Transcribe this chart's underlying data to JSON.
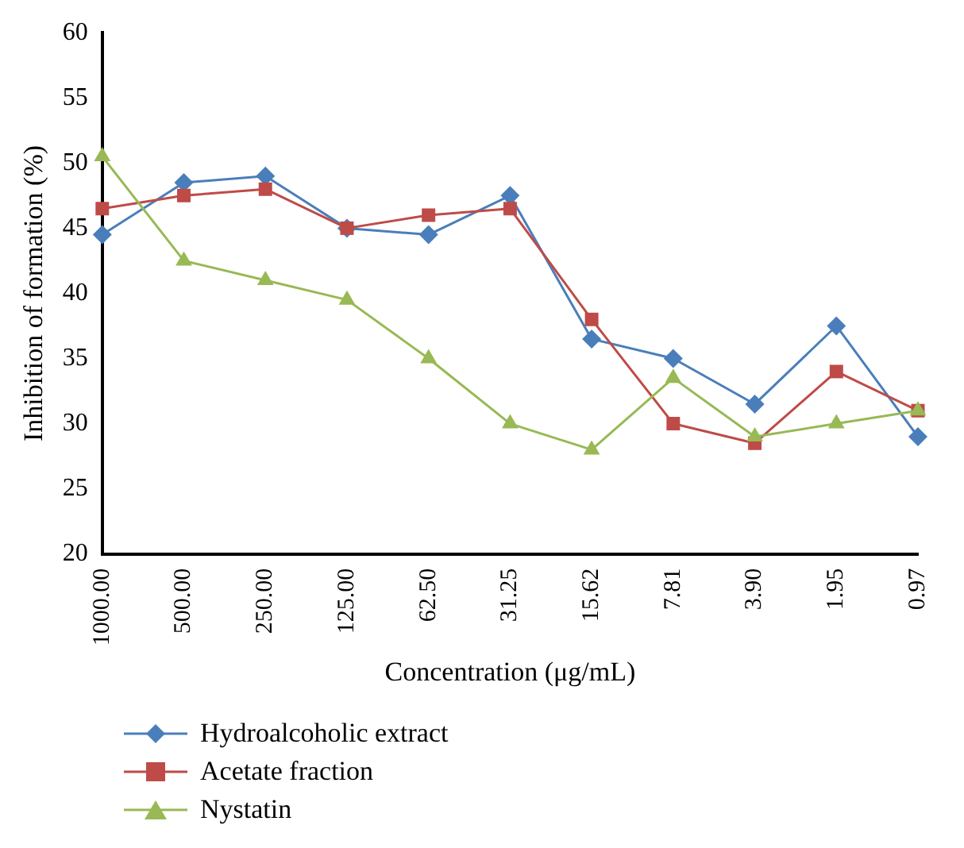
{
  "chart_data": {
    "type": "line",
    "xlabel": "Concentration (μg/mL)",
    "ylabel": "Inhibition of formation (%)",
    "categories": [
      "1000.00",
      "500.00",
      "250.00",
      "125.00",
      "62.50",
      "31.25",
      "15.62",
      "7.81",
      "3.90",
      "1.95",
      "0.97"
    ],
    "series": [
      {
        "name": "Hydroalcoholic extract",
        "color": "#4a7ebb",
        "marker": "diamond",
        "values": [
          44.5,
          48.5,
          49,
          45,
          44.5,
          47.5,
          36.5,
          35,
          31.5,
          37.5,
          29
        ]
      },
      {
        "name": "Acetate fraction",
        "color": "#be4b48",
        "marker": "square",
        "values": [
          46.5,
          47.5,
          48,
          45,
          46,
          46.5,
          38,
          30,
          28.5,
          34,
          31
        ]
      },
      {
        "name": "Nystatin",
        "color": "#98b954",
        "marker": "triangle",
        "values": [
          50.5,
          42.5,
          41,
          39.5,
          35,
          30,
          28,
          33.5,
          29,
          30,
          31
        ]
      }
    ],
    "ylim": [
      20,
      60
    ],
    "yticks": [
      20,
      25,
      30,
      35,
      40,
      45,
      50,
      55,
      60
    ],
    "grid": false,
    "legend": "bottom left"
  }
}
